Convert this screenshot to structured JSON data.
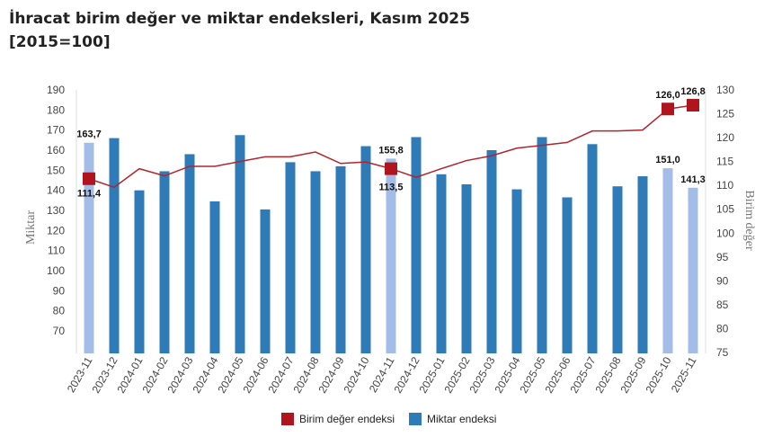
{
  "chart_data": {
    "type": "bar",
    "title": "İhracat birim değer ve miktar endeksleri, Kasım 2025",
    "subtitle": "[2015=100]",
    "categories": [
      "2023-11",
      "2023-12",
      "2024-01",
      "2024-02",
      "2024-03",
      "2024-04",
      "2024-05",
      "2024-06",
      "2024-07",
      "2024-08",
      "2024-09",
      "2024-10",
      "2024-11",
      "2024-12",
      "2025-01",
      "2025-02",
      "2025-03",
      "2025-04",
      "2025-05",
      "2025-06",
      "2025-07",
      "2025-08",
      "2025-09",
      "2025-10",
      "2025-11"
    ],
    "series": [
      {
        "name": "Birim değer endeksi",
        "type": "line",
        "axis": "right",
        "color": "#b2242c",
        "values": [
          111.4,
          109.6,
          113.5,
          112.0,
          114.0,
          114.0,
          115.0,
          116.0,
          116.0,
          117.0,
          114.6,
          114.9,
          113.5,
          111.7,
          113.5,
          115.2,
          116.2,
          117.8,
          118.4,
          119.0,
          121.4,
          121.4,
          121.6,
          126.0,
          126.8
        ]
      },
      {
        "name": "Miktar endeksi",
        "type": "bar",
        "axis": "left",
        "color": "#2e7bb8",
        "highlight_color": "#a4bde6",
        "values": [
          163.7,
          166.0,
          140.0,
          149.5,
          158.0,
          134.5,
          167.5,
          130.5,
          154.0,
          149.5,
          152.0,
          162.0,
          155.8,
          166.5,
          148.0,
          143.0,
          160.0,
          140.5,
          166.5,
          136.5,
          163.0,
          142.0,
          147.0,
          151.0,
          141.3
        ]
      }
    ],
    "highlighted_indices": [
      0,
      12,
      23,
      24
    ],
    "data_labels": {
      "bar": {
        "0": "163,7",
        "12": "155,8",
        "23": "151,0",
        "24": "141,3"
      },
      "line": {
        "0": "111,4",
        "12": "113,5",
        "23": "126,0",
        "24": "126,8"
      }
    },
    "ylabel": "Miktar",
    "y2label": "Birim değer",
    "ylim": [
      70,
      190
    ],
    "y2lim": [
      75,
      130
    ],
    "yticks": [
      70,
      80,
      90,
      100,
      110,
      120,
      130,
      140,
      150,
      160,
      170,
      180,
      190
    ],
    "y2ticks": [
      75,
      80,
      85,
      90,
      95,
      100,
      105,
      110,
      115,
      120,
      125,
      130
    ],
    "grid": false,
    "legend": "bottom-center"
  }
}
